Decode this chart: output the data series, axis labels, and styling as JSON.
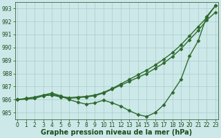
{
  "line_straight1": {
    "x": [
      0,
      1,
      2,
      3,
      4,
      5,
      6,
      7,
      8,
      9,
      10,
      11,
      12,
      13,
      14,
      15,
      16,
      17,
      18,
      19,
      20,
      21,
      22,
      23
    ],
    "y": [
      986.0,
      986.05,
      986.1,
      986.3,
      986.35,
      986.2,
      986.1,
      986.15,
      986.2,
      986.3,
      986.5,
      986.8,
      987.1,
      987.4,
      987.7,
      988.0,
      988.4,
      988.8,
      989.3,
      989.9,
      990.6,
      991.3,
      992.1,
      992.7
    ],
    "color": "#2d6a2d",
    "marker": "D",
    "markersize": 2.5,
    "linewidth": 1.0
  },
  "line_straight2": {
    "x": [
      0,
      1,
      2,
      3,
      4,
      5,
      6,
      7,
      8,
      9,
      10,
      11,
      12,
      13,
      14,
      15,
      16,
      17,
      18,
      19,
      20,
      21,
      22,
      23
    ],
    "y": [
      986.0,
      986.05,
      986.1,
      986.3,
      986.4,
      986.25,
      986.15,
      986.2,
      986.25,
      986.35,
      986.55,
      986.85,
      987.2,
      987.55,
      987.9,
      988.25,
      988.65,
      989.1,
      989.6,
      990.2,
      990.9,
      991.6,
      992.3,
      993.2
    ],
    "color": "#2d6a2d",
    "marker": "D",
    "markersize": 2.5,
    "linewidth": 1.0
  },
  "line_wavy": {
    "x": [
      0,
      1,
      2,
      3,
      4,
      5,
      6,
      7,
      8,
      9,
      10,
      11,
      12,
      13,
      14,
      15,
      16,
      17,
      18,
      19,
      20,
      21,
      22,
      23
    ],
    "y": [
      986.0,
      986.1,
      986.2,
      986.35,
      986.5,
      986.3,
      986.0,
      985.8,
      985.65,
      985.75,
      985.95,
      985.75,
      985.5,
      985.15,
      984.85,
      984.7,
      985.0,
      985.6,
      986.55,
      987.55,
      989.35,
      990.5,
      992.4,
      993.2
    ],
    "color": "#2d6a2d",
    "marker": "D",
    "markersize": 2.5,
    "linewidth": 1.0
  },
  "xlabel": "Graphe pression niveau de la mer (hPa)",
  "ylim": [
    984.5,
    993.5
  ],
  "xlim": [
    -0.3,
    23.3
  ],
  "yticks": [
    985,
    986,
    987,
    988,
    989,
    990,
    991,
    992,
    993
  ],
  "xticks": [
    0,
    1,
    2,
    3,
    4,
    5,
    6,
    7,
    8,
    9,
    10,
    11,
    12,
    13,
    14,
    15,
    16,
    17,
    18,
    19,
    20,
    21,
    22,
    23
  ],
  "bg_color": "#cce8e8",
  "grid_color": "#aacece",
  "text_color": "#1a4a1a",
  "tick_label_fontsize": 5.5,
  "xlabel_fontsize": 7
}
